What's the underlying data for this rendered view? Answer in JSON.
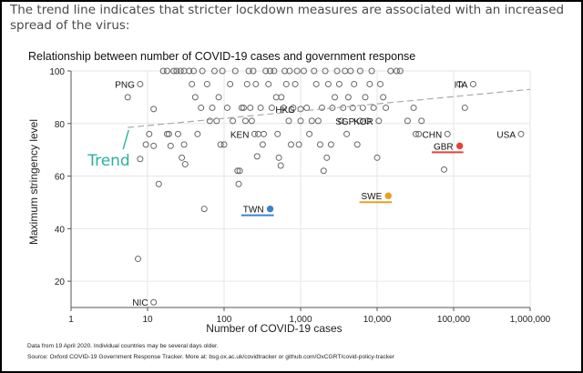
{
  "caption": "The trend line indicates that stricter lockdown measures are associated with an increased spread of the virus:",
  "chart_data": {
    "type": "scatter",
    "title": "Relationship between number of COVID-19 cases and government response",
    "xlabel": "Number of COVID-19 cases",
    "ylabel": "Maximum stringency level",
    "xscale": "log",
    "xlim": [
      1,
      1000000
    ],
    "ylim": [
      10,
      100
    ],
    "xticks": [
      1,
      10,
      100,
      1000,
      10000,
      100000,
      1000000
    ],
    "xtick_labels": [
      "1",
      "10",
      "100",
      "1,000",
      "10,000",
      "100,000",
      "1,000,000"
    ],
    "yticks": [
      20,
      40,
      60,
      80,
      100
    ],
    "ytick_labels": [
      "20",
      "40",
      "60",
      "80",
      "100"
    ],
    "trend": {
      "label": "Trend",
      "start": [
        5.5,
        78.5
      ],
      "end": [
        1000000,
        93
      ],
      "color": "#aaaaaa",
      "label_color": "#2bb19a"
    },
    "labeled_points": [
      {
        "label": "PNG",
        "x": 8,
        "y": 95,
        "color": "#777777",
        "highlight": false
      },
      {
        "label": "ITA",
        "x": 180000,
        "y": 95,
        "color": "#777777",
        "highlight": false
      },
      {
        "label": "HKG",
        "x": 1000,
        "y": 85.5,
        "color": "#777777",
        "highlight": false
      },
      {
        "label": "SGP",
        "x": 6000,
        "y": 81,
        "color": "#777777",
        "highlight": false
      },
      {
        "label": "KOR",
        "x": 10500,
        "y": 81,
        "color": "#777777",
        "highlight": false
      },
      {
        "label": "KEN",
        "x": 250,
        "y": 76,
        "color": "#777777",
        "highlight": false
      },
      {
        "label": "CHN",
        "x": 83000,
        "y": 76,
        "color": "#777777",
        "highlight": false
      },
      {
        "label": "USA",
        "x": 760000,
        "y": 76,
        "color": "#777777",
        "highlight": false
      },
      {
        "label": "GBR",
        "x": 120000,
        "y": 71.5,
        "color": "#e0443c",
        "highlight": true
      },
      {
        "label": "SWE",
        "x": 14000,
        "y": 52.5,
        "color": "#e8a020",
        "highlight": true
      },
      {
        "label": "TWN",
        "x": 400,
        "y": 47.5,
        "color": "#3a83c9",
        "highlight": true
      },
      {
        "label": "NIC",
        "x": 12,
        "y": 12,
        "color": "#777777",
        "highlight": false
      }
    ],
    "points": [
      [
        5.5,
        90
      ],
      [
        7.5,
        28.5
      ],
      [
        8,
        66.5
      ],
      [
        9.5,
        72
      ],
      [
        10.5,
        76
      ],
      [
        12,
        85.5
      ],
      [
        12,
        71.5
      ],
      [
        14,
        57
      ],
      [
        16,
        100
      ],
      [
        18,
        100
      ],
      [
        18,
        76
      ],
      [
        19,
        76
      ],
      [
        20,
        71.5
      ],
      [
        22,
        100
      ],
      [
        24,
        100
      ],
      [
        25,
        76
      ],
      [
        27,
        100
      ],
      [
        28,
        67
      ],
      [
        30,
        100
      ],
      [
        30,
        72
      ],
      [
        31,
        64.5
      ],
      [
        35,
        100
      ],
      [
        38,
        95
      ],
      [
        40,
        100
      ],
      [
        42,
        90
      ],
      [
        45,
        76
      ],
      [
        50,
        86
      ],
      [
        52,
        100
      ],
      [
        55,
        47.5
      ],
      [
        60,
        95
      ],
      [
        65,
        81
      ],
      [
        70,
        86
      ],
      [
        75,
        100
      ],
      [
        80,
        81
      ],
      [
        85,
        90
      ],
      [
        90,
        72
      ],
      [
        95,
        100
      ],
      [
        100,
        72
      ],
      [
        110,
        86
      ],
      [
        120,
        95
      ],
      [
        130,
        81
      ],
      [
        140,
        100
      ],
      [
        150,
        62
      ],
      [
        155,
        57
      ],
      [
        160,
        62
      ],
      [
        170,
        86
      ],
      [
        180,
        86
      ],
      [
        190,
        81
      ],
      [
        200,
        95
      ],
      [
        210,
        100
      ],
      [
        220,
        86
      ],
      [
        230,
        81
      ],
      [
        240,
        100
      ],
      [
        260,
        95
      ],
      [
        270,
        67.5
      ],
      [
        280,
        76
      ],
      [
        300,
        86
      ],
      [
        320,
        72
      ],
      [
        330,
        76
      ],
      [
        350,
        100
      ],
      [
        380,
        95
      ],
      [
        400,
        100
      ],
      [
        420,
        86
      ],
      [
        450,
        100
      ],
      [
        480,
        90
      ],
      [
        500,
        76
      ],
      [
        520,
        67
      ],
      [
        550,
        64
      ],
      [
        560,
        90
      ],
      [
        600,
        86
      ],
      [
        620,
        100
      ],
      [
        650,
        95
      ],
      [
        700,
        81
      ],
      [
        720,
        100
      ],
      [
        750,
        72
      ],
      [
        800,
        86
      ],
      [
        850,
        95
      ],
      [
        900,
        100
      ],
      [
        950,
        72
      ],
      [
        1000,
        81
      ],
      [
        1100,
        100
      ],
      [
        1200,
        86
      ],
      [
        1300,
        76
      ],
      [
        1400,
        81
      ],
      [
        1500,
        100
      ],
      [
        1600,
        95
      ],
      [
        1700,
        81
      ],
      [
        1800,
        72
      ],
      [
        1900,
        86
      ],
      [
        2000,
        62
      ],
      [
        2100,
        100
      ],
      [
        2200,
        67
      ],
      [
        2300,
        95
      ],
      [
        2500,
        72
      ],
      [
        2600,
        86
      ],
      [
        2800,
        90
      ],
      [
        3000,
        100
      ],
      [
        3200,
        95
      ],
      [
        3400,
        81
      ],
      [
        3600,
        86
      ],
      [
        3800,
        100
      ],
      [
        4000,
        76
      ],
      [
        4200,
        90
      ],
      [
        4500,
        100
      ],
      [
        4800,
        86
      ],
      [
        5000,
        95
      ],
      [
        5500,
        72
      ],
      [
        6000,
        100
      ],
      [
        6500,
        86
      ],
      [
        7000,
        90
      ],
      [
        7500,
        81
      ],
      [
        8000,
        95
      ],
      [
        8500,
        100
      ],
      [
        9000,
        86
      ],
      [
        10000,
        67
      ],
      [
        11000,
        95
      ],
      [
        12000,
        90
      ],
      [
        13000,
        86
      ],
      [
        15000,
        100
      ],
      [
        18000,
        100
      ],
      [
        20000,
        100
      ],
      [
        25000,
        81
      ],
      [
        30000,
        86
      ],
      [
        32000,
        76
      ],
      [
        35000,
        76
      ],
      [
        38000,
        81
      ],
      [
        120000,
        95
      ],
      [
        140000,
        86
      ],
      [
        75000,
        62.5
      ]
    ],
    "footnotes": [
      "Data from 19 April 2020. Individual countries may be several days older.",
      "Source: Oxford COVID-19 Government Response Tracker. More at: bsg.ox.ac.uk/covidtracker or github.com/OxCGRT/covid-policy-tracker"
    ]
  }
}
